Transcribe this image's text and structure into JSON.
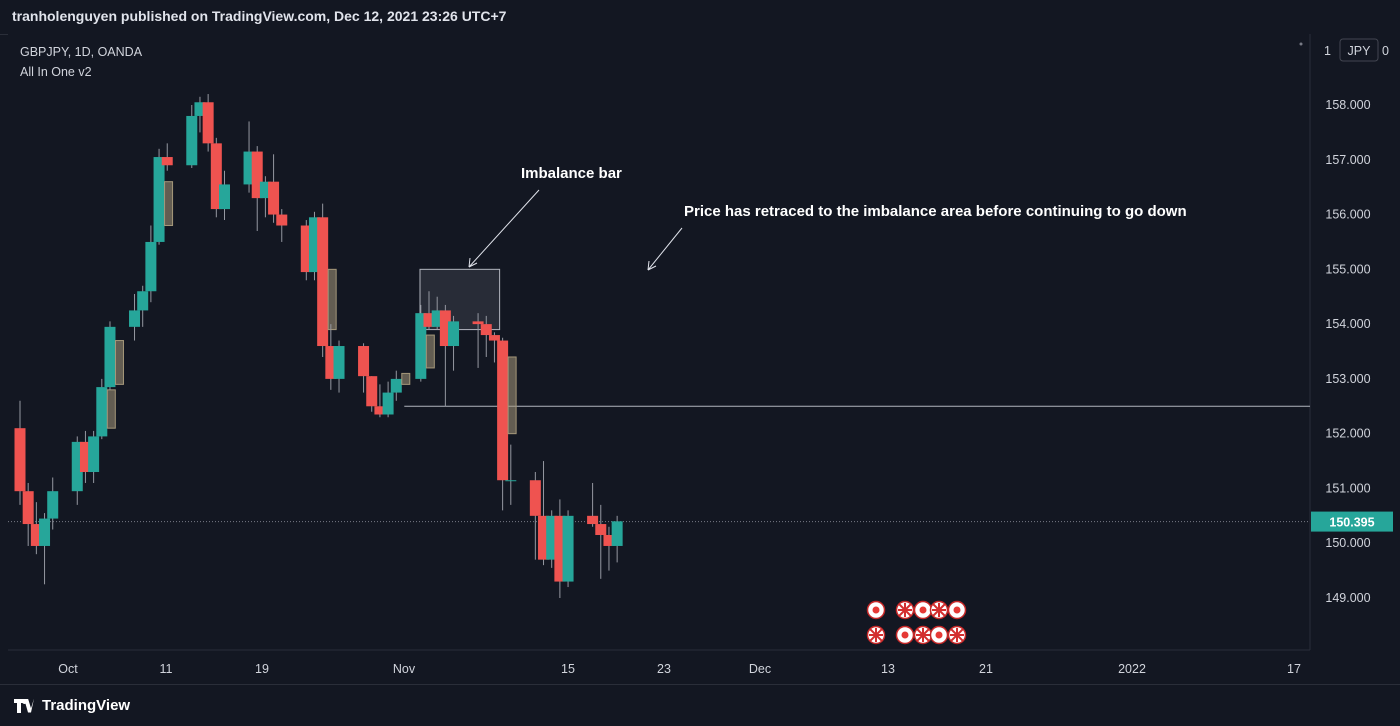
{
  "header": {
    "text": "tranholenguyen published on TradingView.com, Dec 12, 2021 23:26 UTC+7"
  },
  "legend": {
    "symbol": "GBPJPY, 1D, OANDA",
    "indicator": "All In One v2"
  },
  "currency_label": "JPY",
  "last_price": "150.395",
  "colors": {
    "bull": "#26a69a",
    "bear": "#ef5350",
    "imbalance": "#a5987a",
    "background": "#131722",
    "price_tag": "#26a69a"
  },
  "annotations": [
    {
      "text": "Imbalance bar"
    },
    {
      "text": "Price has retraced to the imbalance area before continuing to go down"
    }
  ],
  "footer": {
    "brand": "TradingView"
  },
  "chart_data": {
    "type": "candlestick",
    "y_ticks": [
      "149.000",
      "150.000",
      "151.000",
      "152.000",
      "153.000",
      "154.000",
      "155.000",
      "156.000",
      "157.000",
      "158.000"
    ],
    "x_ticks": [
      "Oct",
      "11",
      "19",
      "Nov",
      "15",
      "23",
      "Dec",
      "13",
      "21",
      "2022",
      "17"
    ],
    "ylim": [
      148.2,
      159.2
    ],
    "horizontal_line": 152.5,
    "imbalance_zone": {
      "from_date": "2021-11-16",
      "to_date": "2021-11-25",
      "low": 153.9,
      "high": 155.0
    },
    "candles": [
      {
        "d": "2021-09-27",
        "o": 152.1,
        "h": 152.6,
        "l": 150.7,
        "c": 150.95
      },
      {
        "d": "2021-09-28",
        "o": 150.95,
        "h": 151.1,
        "l": 149.95,
        "c": 150.35
      },
      {
        "d": "2021-09-29",
        "o": 150.35,
        "h": 150.75,
        "l": 149.8,
        "c": 149.95
      },
      {
        "d": "2021-09-30",
        "o": 149.95,
        "h": 150.55,
        "l": 149.25,
        "c": 150.45
      },
      {
        "d": "2021-10-01",
        "o": 150.45,
        "h": 151.2,
        "l": 150.25,
        "c": 150.95
      },
      {
        "d": "2021-10-04",
        "o": 150.95,
        "h": 151.95,
        "l": 150.7,
        "c": 151.85
      },
      {
        "d": "2021-10-05",
        "o": 151.85,
        "h": 152.05,
        "l": 151.1,
        "c": 151.3
      },
      {
        "d": "2021-10-06",
        "o": 151.3,
        "h": 152.05,
        "l": 151.1,
        "c": 151.95
      },
      {
        "d": "2021-10-07",
        "o": 151.95,
        "h": 153.0,
        "l": 151.9,
        "c": 152.85,
        "imb": [
          152.1,
          152.8
        ]
      },
      {
        "d": "2021-10-08",
        "o": 152.85,
        "h": 154.05,
        "l": 152.8,
        "c": 153.95,
        "imb": [
          152.9,
          153.7
        ]
      },
      {
        "d": "2021-10-11",
        "o": 153.95,
        "h": 154.55,
        "l": 153.7,
        "c": 154.25
      },
      {
        "d": "2021-10-12",
        "o": 154.25,
        "h": 154.7,
        "l": 153.95,
        "c": 154.6
      },
      {
        "d": "2021-10-13",
        "o": 154.6,
        "h": 155.8,
        "l": 154.4,
        "c": 155.5
      },
      {
        "d": "2021-10-14",
        "o": 155.5,
        "h": 157.2,
        "l": 155.45,
        "c": 157.05,
        "imb": [
          155.8,
          156.6
        ]
      },
      {
        "d": "2021-10-15",
        "o": 157.05,
        "h": 157.3,
        "l": 156.8,
        "c": 156.9
      },
      {
        "d": "2021-10-18",
        "o": 156.9,
        "h": 158.0,
        "l": 156.85,
        "c": 157.8
      },
      {
        "d": "2021-10-19",
        "o": 157.8,
        "h": 158.15,
        "l": 157.5,
        "c": 158.05
      },
      {
        "d": "2021-10-20",
        "o": 158.05,
        "h": 158.2,
        "l": 157.15,
        "c": 157.3
      },
      {
        "d": "2021-10-21",
        "o": 157.3,
        "h": 157.4,
        "l": 155.95,
        "c": 156.1
      },
      {
        "d": "2021-10-22",
        "o": 156.1,
        "h": 156.8,
        "l": 155.9,
        "c": 156.55
      },
      {
        "d": "2021-10-25",
        "o": 156.55,
        "h": 157.7,
        "l": 156.4,
        "c": 157.15
      },
      {
        "d": "2021-10-26",
        "o": 157.15,
        "h": 157.25,
        "l": 155.7,
        "c": 156.3
      },
      {
        "d": "2021-10-27",
        "o": 156.3,
        "h": 156.7,
        "l": 155.95,
        "c": 156.6
      },
      {
        "d": "2021-10-28",
        "o": 156.6,
        "h": 157.1,
        "l": 155.85,
        "c": 156.0
      },
      {
        "d": "2021-10-29",
        "o": 156.0,
        "h": 156.1,
        "l": 155.5,
        "c": 155.8
      },
      {
        "d": "2021-11-01",
        "o": 155.8,
        "h": 155.9,
        "l": 154.8,
        "c": 154.95
      },
      {
        "d": "2021-11-02",
        "o": 154.95,
        "h": 156.05,
        "l": 154.8,
        "c": 155.95
      },
      {
        "d": "2021-11-03",
        "o": 155.95,
        "h": 156.2,
        "l": 153.4,
        "c": 153.6,
        "imb": [
          153.9,
          155.0
        ]
      },
      {
        "d": "2021-11-04",
        "o": 153.6,
        "h": 154.0,
        "l": 152.8,
        "c": 153.0
      },
      {
        "d": "2021-11-05",
        "o": 153.0,
        "h": 153.7,
        "l": 152.75,
        "c": 153.6
      },
      {
        "d": "2021-11-08",
        "o": 153.6,
        "h": 153.65,
        "l": 152.75,
        "c": 153.05
      },
      {
        "d": "2021-11-09",
        "o": 153.05,
        "h": 153.05,
        "l": 152.4,
        "c": 152.5
      },
      {
        "d": "2021-11-10",
        "o": 152.5,
        "h": 152.9,
        "l": 152.3,
        "c": 152.35
      },
      {
        "d": "2021-11-11",
        "o": 152.35,
        "h": 152.95,
        "l": 152.3,
        "c": 152.75
      },
      {
        "d": "2021-11-12",
        "o": 152.75,
        "h": 153.15,
        "l": 152.6,
        "c": 153.0,
        "imb": [
          152.9,
          153.1
        ]
      },
      {
        "d": "2021-11-15",
        "o": 153.0,
        "h": 154.35,
        "l": 152.95,
        "c": 154.2,
        "imb": [
          153.2,
          153.8
        ]
      },
      {
        "d": "2021-11-16",
        "o": 154.2,
        "h": 154.6,
        "l": 153.9,
        "c": 153.95
      },
      {
        "d": "2021-11-17",
        "o": 153.95,
        "h": 154.5,
        "l": 153.9,
        "c": 154.25
      },
      {
        "d": "2021-11-18",
        "o": 154.25,
        "h": 154.35,
        "l": 152.5,
        "c": 153.6
      },
      {
        "d": "2021-11-19",
        "o": 153.6,
        "h": 154.15,
        "l": 153.15,
        "c": 154.05
      },
      {
        "d": "2021-11-22",
        "o": 154.05,
        "h": 154.2,
        "l": 153.2,
        "c": 154.0
      },
      {
        "d": "2021-11-23",
        "o": 154.0,
        "h": 154.15,
        "l": 153.4,
        "c": 153.8
      },
      {
        "d": "2021-11-24",
        "o": 153.8,
        "h": 153.85,
        "l": 153.3,
        "c": 153.7
      },
      {
        "d": "2021-11-25",
        "o": 153.7,
        "h": 153.75,
        "l": 150.6,
        "c": 151.15,
        "imb": [
          152.0,
          153.4
        ]
      },
      {
        "d": "2021-11-26",
        "o": 151.15,
        "h": 151.8,
        "l": 150.7,
        "c": 151.15
      },
      {
        "d": "2021-11-29",
        "o": 151.15,
        "h": 151.3,
        "l": 149.7,
        "c": 150.5
      },
      {
        "d": "2021-11-30",
        "o": 150.5,
        "h": 151.5,
        "l": 149.6,
        "c": 149.7
      },
      {
        "d": "2021-12-01",
        "o": 149.7,
        "h": 150.6,
        "l": 149.55,
        "c": 150.5
      },
      {
        "d": "2021-12-02",
        "o": 150.5,
        "h": 150.8,
        "l": 149.0,
        "c": 149.3
      },
      {
        "d": "2021-12-03",
        "o": 149.3,
        "h": 150.6,
        "l": 149.2,
        "c": 150.5
      },
      {
        "d": "2021-12-06",
        "o": 150.5,
        "h": 151.1,
        "l": 150.3,
        "c": 150.35
      },
      {
        "d": "2021-12-07",
        "o": 150.35,
        "h": 150.7,
        "l": 149.35,
        "c": 150.15
      },
      {
        "d": "2021-12-08",
        "o": 150.15,
        "h": 150.3,
        "l": 149.5,
        "c": 149.95
      },
      {
        "d": "2021-12-09",
        "o": 149.95,
        "h": 150.5,
        "l": 149.65,
        "c": 150.4
      }
    ]
  }
}
